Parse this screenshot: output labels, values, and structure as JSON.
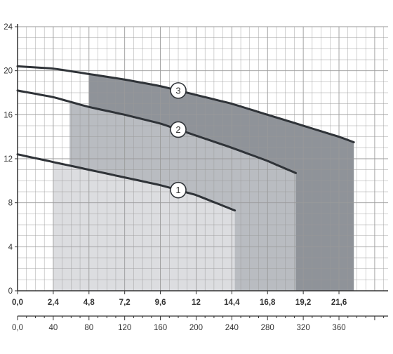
{
  "chart_data": {
    "type": "line",
    "title": "",
    "xlabel": "",
    "ylabel": "",
    "x_primary": {
      "range": [
        0,
        24.9
      ],
      "ticks": [
        0,
        2.4,
        4.8,
        7.2,
        9.6,
        12,
        14.4,
        16.8,
        19.2,
        21.6
      ],
      "tick_labels": [
        "0,0",
        "2,4",
        "4,8",
        "7,2",
        "9,6",
        "12",
        "14,4",
        "16,8",
        "19,2",
        "21,6"
      ]
    },
    "x_secondary": {
      "range": [
        0,
        415
      ],
      "ticks": [
        0,
        40,
        80,
        120,
        160,
        200,
        240,
        280,
        320,
        360
      ],
      "tick_labels": [
        "0,0",
        "40",
        "80",
        "120",
        "160",
        "200",
        "240",
        "280",
        "320",
        "360"
      ]
    },
    "y": {
      "range": [
        0,
        24
      ],
      "ticks": [
        0,
        4,
        8,
        12,
        16,
        20,
        24
      ],
      "tick_labels": [
        "0",
        "4",
        "8",
        "12",
        "16",
        "20",
        "24"
      ]
    },
    "grid": true,
    "series": [
      {
        "name": "1",
        "x": [
          0,
          2.4,
          4.8,
          7.2,
          9.6,
          12,
          14.6
        ],
        "y": [
          12.4,
          11.7,
          11.0,
          10.3,
          9.6,
          8.7,
          7.3
        ]
      },
      {
        "name": "2",
        "x": [
          0,
          2.4,
          4.8,
          7.2,
          9.6,
          12,
          14.4,
          16.8,
          18.7
        ],
        "y": [
          18.2,
          17.6,
          16.7,
          16.0,
          15.2,
          14.1,
          13.0,
          11.8,
          10.7
        ]
      },
      {
        "name": "3",
        "x": [
          0,
          2.4,
          4.8,
          7.2,
          9.6,
          12,
          14.4,
          16.8,
          19.2,
          21.6,
          22.6
        ],
        "y": [
          20.4,
          20.2,
          19.7,
          19.2,
          18.6,
          17.8,
          17.0,
          16.0,
          15.0,
          14.0,
          13.5
        ]
      }
    ],
    "shaded_regions": [
      {
        "series": "1",
        "x_from": 2.4,
        "x_to": 14.6,
        "color": "#dcdde0"
      },
      {
        "series": "2",
        "x_from": 3.5,
        "x_to": 18.7,
        "color": "#b9bcc1"
      },
      {
        "series": "3",
        "x_from": 4.8,
        "x_to": 22.6,
        "color": "#8f9399"
      }
    ],
    "markers": [
      {
        "label": "1",
        "x": 10.8
      },
      {
        "label": "2",
        "x": 10.8
      },
      {
        "label": "3",
        "x": 10.8
      }
    ],
    "colors": {
      "curve": "#2f3338",
      "grid": "#9a9a9a",
      "axis": "#333333"
    }
  }
}
